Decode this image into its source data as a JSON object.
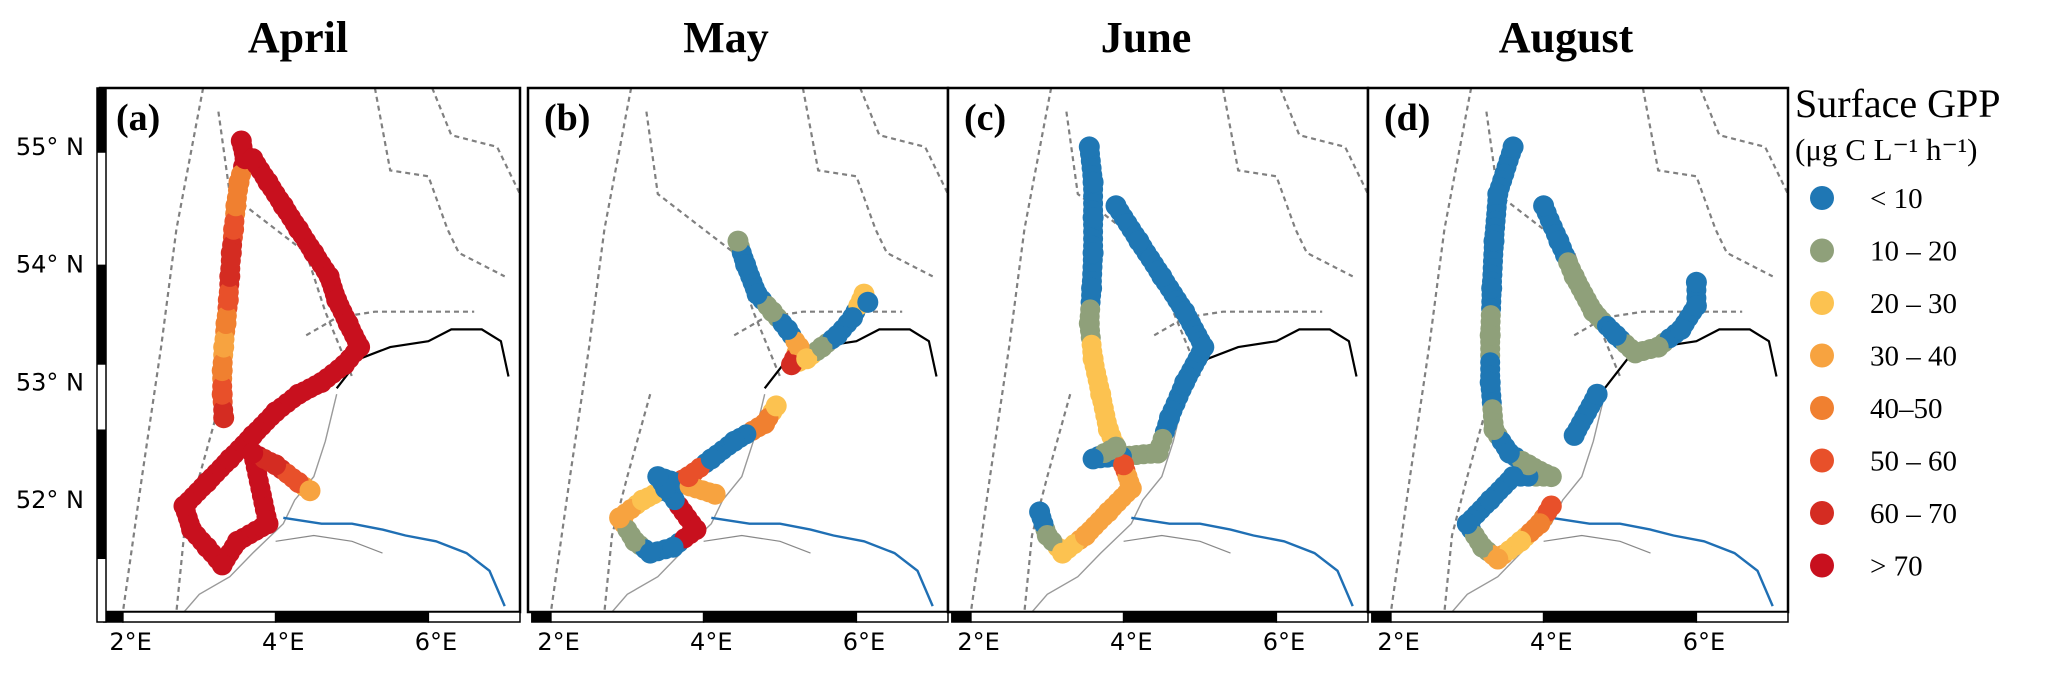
{
  "panels": [
    {
      "label": "(a)",
      "title": "April"
    },
    {
      "label": "(b)",
      "title": "May"
    },
    {
      "label": "(c)",
      "title": "June"
    },
    {
      "label": "(d)",
      "title": "August"
    }
  ],
  "axes": {
    "lat_ticks": [
      "55° N",
      "54° N",
      "53° N",
      "52° N"
    ],
    "lon_ticks": [
      "2°E",
      "4°E",
      "6°E"
    ]
  },
  "legend": {
    "title": "Surface GPP",
    "unit": "(μg C L⁻¹ h⁻¹)",
    "classes": [
      {
        "label": "< 10",
        "color": "#1f77b4"
      },
      {
        "label": "10 – 20",
        "color": "#8fa07a"
      },
      {
        "label": "20 – 30",
        "color": "#fcc250"
      },
      {
        "label": "30 – 40",
        "color": "#f7a340"
      },
      {
        "label": "40–50",
        "color": "#f08030"
      },
      {
        "label": "50 – 60",
        "color": "#e8502a"
      },
      {
        "label": "60 – 70",
        "color": "#d42c22"
      },
      {
        "label": "> 70",
        "color": "#c8101e"
      }
    ]
  },
  "map_colors": {
    "border_dashed": "#808080",
    "coastline": "#000000",
    "river": "#1f6fb4",
    "frame": "#000000"
  },
  "tracks": {
    "April": [
      {
        "lon": 3.45,
        "lat": 55.05,
        "c": 7
      },
      {
        "lon": 3.5,
        "lat": 54.9,
        "c": 7
      },
      {
        "lon": 3.42,
        "lat": 54.7,
        "c": 4
      },
      {
        "lon": 3.38,
        "lat": 54.5,
        "c": 4
      },
      {
        "lon": 3.35,
        "lat": 54.3,
        "c": 5
      },
      {
        "lon": 3.32,
        "lat": 54.1,
        "c": 6
      },
      {
        "lon": 3.3,
        "lat": 53.9,
        "c": 6
      },
      {
        "lon": 3.28,
        "lat": 53.7,
        "c": 5
      },
      {
        "lon": 3.25,
        "lat": 53.5,
        "c": 4
      },
      {
        "lon": 3.22,
        "lat": 53.3,
        "c": 3
      },
      {
        "lon": 3.2,
        "lat": 53.1,
        "c": 4
      },
      {
        "lon": 3.2,
        "lat": 52.9,
        "c": 5
      },
      {
        "lon": 3.22,
        "lat": 52.7,
        "c": 6
      },
      {
        "lon": 3.6,
        "lat": 54.9,
        "c": 7
      },
      {
        "lon": 3.8,
        "lat": 54.7,
        "c": 7
      },
      {
        "lon": 4.0,
        "lat": 54.5,
        "c": 7
      },
      {
        "lon": 4.2,
        "lat": 54.3,
        "c": 7
      },
      {
        "lon": 4.4,
        "lat": 54.1,
        "c": 7
      },
      {
        "lon": 4.6,
        "lat": 53.9,
        "c": 7
      },
      {
        "lon": 4.7,
        "lat": 53.7,
        "c": 7
      },
      {
        "lon": 4.85,
        "lat": 53.5,
        "c": 7
      },
      {
        "lon": 5.0,
        "lat": 53.3,
        "c": 7
      },
      {
        "lon": 4.8,
        "lat": 53.15,
        "c": 7
      },
      {
        "lon": 4.5,
        "lat": 53.0,
        "c": 7
      },
      {
        "lon": 4.2,
        "lat": 52.9,
        "c": 7
      },
      {
        "lon": 3.9,
        "lat": 52.75,
        "c": 7
      },
      {
        "lon": 3.6,
        "lat": 52.55,
        "c": 7
      },
      {
        "lon": 3.3,
        "lat": 52.35,
        "c": 7
      },
      {
        "lon": 3.0,
        "lat": 52.15,
        "c": 7
      },
      {
        "lon": 2.7,
        "lat": 51.95,
        "c": 7
      },
      {
        "lon": 2.8,
        "lat": 51.75,
        "c": 7
      },
      {
        "lon": 3.0,
        "lat": 51.6,
        "c": 7
      },
      {
        "lon": 3.2,
        "lat": 51.45,
        "c": 7
      },
      {
        "lon": 3.4,
        "lat": 51.65,
        "c": 7
      },
      {
        "lon": 3.8,
        "lat": 51.8,
        "c": 7
      },
      {
        "lon": 3.6,
        "lat": 52.4,
        "c": 7
      },
      {
        "lon": 3.9,
        "lat": 52.3,
        "c": 6
      },
      {
        "lon": 4.2,
        "lat": 52.15,
        "c": 5
      },
      {
        "lon": 4.35,
        "lat": 52.08,
        "c": 3
      }
    ],
    "May": [
      {
        "lon": 4.35,
        "lat": 54.2,
        "c": 1
      },
      {
        "lon": 4.45,
        "lat": 54.0,
        "c": 0
      },
      {
        "lon": 4.6,
        "lat": 53.75,
        "c": 0
      },
      {
        "lon": 4.8,
        "lat": 53.6,
        "c": 1
      },
      {
        "lon": 5.0,
        "lat": 53.45,
        "c": 0
      },
      {
        "lon": 5.15,
        "lat": 53.3,
        "c": 3
      },
      {
        "lon": 5.05,
        "lat": 53.15,
        "c": 6
      },
      {
        "lon": 5.25,
        "lat": 53.2,
        "c": 2
      },
      {
        "lon": 5.45,
        "lat": 53.3,
        "c": 1
      },
      {
        "lon": 5.65,
        "lat": 53.4,
        "c": 0
      },
      {
        "lon": 5.85,
        "lat": 53.55,
        "c": 0
      },
      {
        "lon": 6.0,
        "lat": 53.75,
        "c": 2
      },
      {
        "lon": 6.05,
        "lat": 53.68,
        "c": 0
      },
      {
        "lon": 4.85,
        "lat": 52.8,
        "c": 2
      },
      {
        "lon": 4.7,
        "lat": 52.65,
        "c": 4
      },
      {
        "lon": 4.3,
        "lat": 52.5,
        "c": 0
      },
      {
        "lon": 4.0,
        "lat": 52.35,
        "c": 0
      },
      {
        "lon": 3.7,
        "lat": 52.2,
        "c": 5
      },
      {
        "lon": 3.4,
        "lat": 52.1,
        "c": 0
      },
      {
        "lon": 3.1,
        "lat": 52.0,
        "c": 2
      },
      {
        "lon": 2.8,
        "lat": 51.85,
        "c": 3
      },
      {
        "lon": 3.0,
        "lat": 51.65,
        "c": 1
      },
      {
        "lon": 3.2,
        "lat": 51.55,
        "c": 0
      },
      {
        "lon": 3.5,
        "lat": 51.6,
        "c": 0
      },
      {
        "lon": 3.8,
        "lat": 51.75,
        "c": 7
      },
      {
        "lon": 3.3,
        "lat": 52.2,
        "c": 0
      },
      {
        "lon": 4.05,
        "lat": 52.05,
        "c": 3
      }
    ],
    "June": [
      {
        "lon": 3.45,
        "lat": 55.0,
        "c": 0
      },
      {
        "lon": 3.5,
        "lat": 54.7,
        "c": 0
      },
      {
        "lon": 3.5,
        "lat": 54.4,
        "c": 0
      },
      {
        "lon": 3.5,
        "lat": 54.1,
        "c": 0
      },
      {
        "lon": 3.48,
        "lat": 53.8,
        "c": 0
      },
      {
        "lon": 3.45,
        "lat": 53.5,
        "c": 1
      },
      {
        "lon": 3.5,
        "lat": 53.2,
        "c": 2
      },
      {
        "lon": 3.6,
        "lat": 52.9,
        "c": 2
      },
      {
        "lon": 3.7,
        "lat": 52.6,
        "c": 2
      },
      {
        "lon": 3.9,
        "lat": 52.3,
        "c": 5
      },
      {
        "lon": 4.0,
        "lat": 52.1,
        "c": 3
      },
      {
        "lon": 3.7,
        "lat": 51.9,
        "c": 3
      },
      {
        "lon": 3.4,
        "lat": 51.7,
        "c": 3
      },
      {
        "lon": 3.1,
        "lat": 51.55,
        "c": 2
      },
      {
        "lon": 2.9,
        "lat": 51.7,
        "c": 1
      },
      {
        "lon": 2.8,
        "lat": 51.9,
        "c": 0
      },
      {
        "lon": 3.8,
        "lat": 54.5,
        "c": 0
      },
      {
        "lon": 4.1,
        "lat": 54.2,
        "c": 0
      },
      {
        "lon": 4.4,
        "lat": 53.9,
        "c": 0
      },
      {
        "lon": 4.7,
        "lat": 53.6,
        "c": 0
      },
      {
        "lon": 4.95,
        "lat": 53.3,
        "c": 0
      },
      {
        "lon": 4.7,
        "lat": 53.0,
        "c": 0
      },
      {
        "lon": 4.5,
        "lat": 52.7,
        "c": 0
      },
      {
        "lon": 4.35,
        "lat": 52.4,
        "c": 1
      },
      {
        "lon": 3.5,
        "lat": 52.35,
        "c": 0
      },
      {
        "lon": 3.8,
        "lat": 52.45,
        "c": 1
      }
    ],
    "August": [
      {
        "lon": 3.5,
        "lat": 55.0,
        "c": 0
      },
      {
        "lon": 3.3,
        "lat": 54.6,
        "c": 0
      },
      {
        "lon": 3.25,
        "lat": 54.2,
        "c": 0
      },
      {
        "lon": 3.22,
        "lat": 53.8,
        "c": 0
      },
      {
        "lon": 3.2,
        "lat": 53.4,
        "c": 1
      },
      {
        "lon": 3.2,
        "lat": 53.0,
        "c": 0
      },
      {
        "lon": 3.25,
        "lat": 52.6,
        "c": 1
      },
      {
        "lon": 3.45,
        "lat": 52.4,
        "c": 0
      },
      {
        "lon": 3.7,
        "lat": 52.3,
        "c": 1
      },
      {
        "lon": 4.0,
        "lat": 52.2,
        "c": 1
      },
      {
        "lon": 3.5,
        "lat": 52.2,
        "c": 0
      },
      {
        "lon": 3.2,
        "lat": 52.0,
        "c": 0
      },
      {
        "lon": 2.9,
        "lat": 51.8,
        "c": 0
      },
      {
        "lon": 3.1,
        "lat": 51.6,
        "c": 1
      },
      {
        "lon": 3.3,
        "lat": 51.5,
        "c": 3
      },
      {
        "lon": 3.6,
        "lat": 51.65,
        "c": 2
      },
      {
        "lon": 3.85,
        "lat": 51.8,
        "c": 4
      },
      {
        "lon": 4.0,
        "lat": 51.95,
        "c": 5
      },
      {
        "lon": 3.9,
        "lat": 54.5,
        "c": 0
      },
      {
        "lon": 4.1,
        "lat": 54.2,
        "c": 0
      },
      {
        "lon": 4.3,
        "lat": 53.9,
        "c": 1
      },
      {
        "lon": 4.55,
        "lat": 53.6,
        "c": 1
      },
      {
        "lon": 4.85,
        "lat": 53.4,
        "c": 0
      },
      {
        "lon": 5.1,
        "lat": 53.25,
        "c": 1
      },
      {
        "lon": 5.4,
        "lat": 53.3,
        "c": 1
      },
      {
        "lon": 5.7,
        "lat": 53.45,
        "c": 0
      },
      {
        "lon": 5.9,
        "lat": 53.65,
        "c": 0
      },
      {
        "lon": 5.9,
        "lat": 53.85,
        "c": 0
      },
      {
        "lon": 4.6,
        "lat": 52.9,
        "c": 0
      },
      {
        "lon": 4.3,
        "lat": 52.55,
        "c": 0
      }
    ]
  }
}
